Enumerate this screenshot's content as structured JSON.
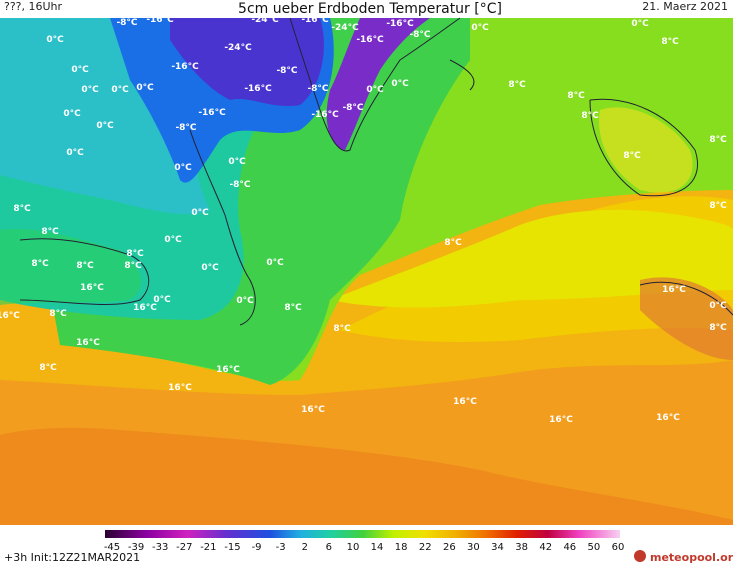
{
  "header": {
    "left": "???, 16Uhr",
    "title": "5cm ueber Erdboden Temperatur [°C]",
    "right": "21. Maerz 2021"
  },
  "map": {
    "labels": [
      "-8°C",
      "-16°C",
      "-24°C",
      "-16°C",
      "-24°C",
      "-16°C",
      "-8°C",
      "0°C",
      "0°C",
      "0°C",
      "-24°C",
      "-16°C",
      "8°C",
      "-16°C",
      "-8°C",
      "0°C",
      "0°C",
      "0°C",
      "0°C",
      "-16°C",
      "-8°C",
      "0°C",
      "0°C",
      "8°C",
      "8°C",
      "0°C",
      "-16°C",
      "-16°C",
      "-8°C",
      "0°C",
      "-8°C",
      "8°C",
      "0°C",
      "0°C",
      "8°C",
      "8°C",
      "0°C",
      "-8°C",
      "8°C",
      "0°C",
      "8°C",
      "8°C",
      "0°C",
      "8°C",
      "8°C",
      "8°C",
      "8°C",
      "0°C",
      "0°C",
      "8°C",
      "16°C",
      "16°C",
      "0°C",
      "0°C",
      "0°C",
      "8°C",
      "16°C",
      "8°C",
      "16°C",
      "8°C",
      "8°C",
      "16°C",
      "8°C",
      "16°C",
      "16°C",
      "16°C",
      "16°C",
      "16°C",
      "16°C"
    ]
  },
  "colorbar": {
    "ticks": [
      -45,
      -39,
      -33,
      -27,
      -21,
      -15,
      -9,
      -3,
      2,
      6,
      10,
      14,
      18,
      22,
      26,
      30,
      34,
      38,
      42,
      46,
      50,
      60
    ]
  },
  "footer": {
    "run": "+3h  Init:12Z21MAR2021",
    "logo": "meteopool.org"
  }
}
